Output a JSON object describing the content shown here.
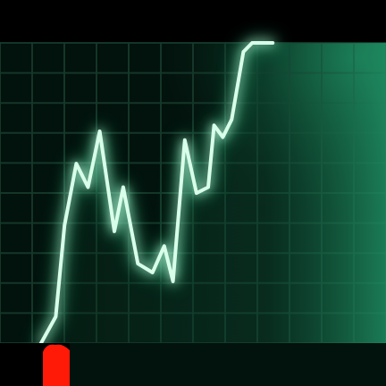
{
  "image": {
    "subject": "glowing-stock-line",
    "colors": {
      "background": "#000000",
      "panel": "#02120c",
      "grid": "#163a2c",
      "line": "#d8ffe9",
      "glow": "#2ee59a",
      "fill_top": "#1f8e63",
      "marker": "#ff1a08"
    }
  },
  "chart_data": {
    "type": "line",
    "title": "",
    "xlabel": "",
    "ylabel": "",
    "grid": true,
    "legend": "none",
    "xlim": [
      0,
      100
    ],
    "ylim": [
      0,
      100
    ],
    "x": [
      0,
      5,
      8,
      12,
      16,
      20,
      25,
      28,
      33,
      38,
      42,
      45,
      49,
      53,
      57,
      59,
      62,
      65,
      69,
      72,
      74,
      77,
      79
    ],
    "series": [
      {
        "values": [
          0,
          9,
          40,
          61,
          53,
          72,
          38,
          53,
          27,
          24,
          33,
          21,
          69,
          51,
          53,
          74,
          70,
          76,
          99,
          104,
          104,
          104,
          104
        ]
      }
    ]
  }
}
